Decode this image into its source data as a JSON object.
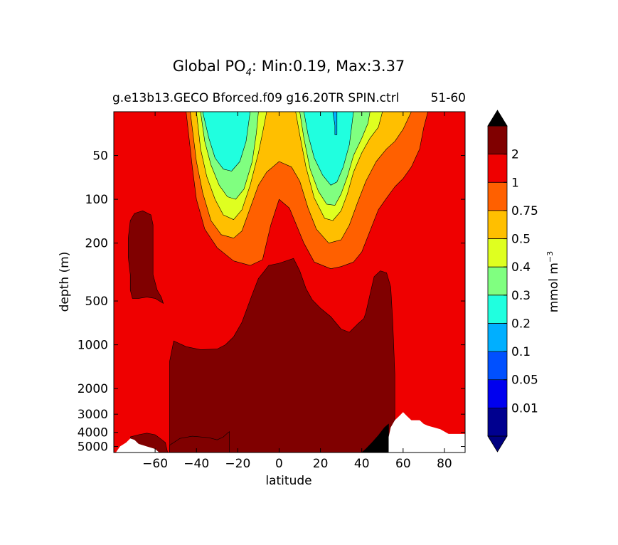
{
  "chart_data": {
    "type": "contourf",
    "title_main": "Global PO",
    "title_sub_index": "4",
    "title_rest": ": Min:0.19, Max:3.37",
    "title_min": 0.19,
    "title_max": 3.37,
    "subtitle_left": "g.e13b13.GECO Bforced.f09 g16.20TR SPIN.ctrl",
    "subtitle_right": "51-60",
    "xlabel": "latitude",
    "ylabel": "depth (m)",
    "xlim": [
      -80,
      90
    ],
    "ylim": [
      5500,
      25
    ],
    "y_scale": "log",
    "x_ticks": [
      -60,
      -40,
      -20,
      0,
      20,
      40,
      60,
      80
    ],
    "x_tick_labels": [
      "−60",
      "−40",
      "−20",
      "0",
      "20",
      "40",
      "60",
      "80"
    ],
    "y_ticks": [
      50,
      100,
      200,
      500,
      1000,
      2000,
      3000,
      4000,
      5000
    ],
    "y_tick_labels": [
      "50",
      "100",
      "200",
      "500",
      "1000",
      "2000",
      "3000",
      "4000",
      "5000"
    ],
    "colorbar": {
      "label": "mmol m",
      "label_exp": "−3",
      "extend": "both",
      "levels": [
        "0.01",
        "0.05",
        "0.1",
        "0.2",
        "0.3",
        "0.4",
        "0.5",
        "0.75",
        "1",
        "2"
      ],
      "colors": [
        "#00008f",
        "#0000ef",
        "#0050ff",
        "#00afff",
        "#20ffdf",
        "#80ff80",
        "#dfff20",
        "#ffbf00",
        "#ff6000",
        "#ef0000",
        "#800000"
      ],
      "under_color": "#000080",
      "over_color": "#000000"
    },
    "regions": [
      {
        "name": "0.75-1",
        "color": "#ff6000",
        "poly": [
          [
            -45,
            25
          ],
          [
            -42,
            60
          ],
          [
            -40,
            100
          ],
          [
            -36,
            160
          ],
          [
            -30,
            215
          ],
          [
            -22,
            265
          ],
          [
            -14,
            285
          ],
          [
            -8,
            260
          ],
          [
            -4,
            150
          ],
          [
            0,
            100
          ],
          [
            5,
            115
          ],
          [
            12,
            200
          ],
          [
            17,
            270
          ],
          [
            25,
            300
          ],
          [
            30,
            290
          ],
          [
            36,
            270
          ],
          [
            40,
            230
          ],
          [
            44,
            165
          ],
          [
            48,
            118
          ],
          [
            52,
            98
          ],
          [
            56,
            82
          ],
          [
            60,
            72
          ],
          [
            64,
            60
          ],
          [
            68,
            45
          ],
          [
            70,
            32
          ],
          [
            72,
            25
          ]
        ]
      },
      {
        "name": "0.5-0.75",
        "color": "#ffbf00",
        "poly": [
          [
            -43,
            25
          ],
          [
            -40,
            55
          ],
          [
            -37,
            90
          ],
          [
            -33,
            140
          ],
          [
            -28,
            175
          ],
          [
            -22,
            185
          ],
          [
            -18,
            165
          ],
          [
            -14,
            115
          ],
          [
            -10,
            80
          ],
          [
            -6,
            65
          ],
          [
            0,
            55
          ],
          [
            6,
            60
          ],
          [
            10,
            75
          ],
          [
            14,
            115
          ],
          [
            18,
            160
          ],
          [
            24,
            200
          ],
          [
            30,
            190
          ],
          [
            34,
            150
          ],
          [
            38,
            105
          ],
          [
            42,
            75
          ],
          [
            47,
            55
          ],
          [
            52,
            45
          ],
          [
            56,
            40
          ],
          [
            60,
            33
          ],
          [
            64,
            25
          ]
        ]
      },
      {
        "name": "0.4-0.5",
        "color": "#dfff20",
        "poly": [
          [
            -40,
            25
          ],
          [
            -38,
            45
          ],
          [
            -35,
            70
          ],
          [
            -31,
            100
          ],
          [
            -27,
            128
          ],
          [
            -22,
            138
          ],
          [
            -18,
            118
          ],
          [
            -14,
            80
          ],
          [
            -10,
            48
          ],
          [
            -8,
            35
          ],
          [
            -6,
            25
          ],
          [
            8,
            25
          ],
          [
            10,
            36
          ],
          [
            13,
            60
          ],
          [
            17,
            98
          ],
          [
            22,
            135
          ],
          [
            26,
            140
          ],
          [
            30,
            120
          ],
          [
            33,
            92
          ],
          [
            36,
            65
          ],
          [
            40,
            48
          ],
          [
            44,
            38
          ],
          [
            48,
            32
          ],
          [
            50,
            25
          ]
        ]
      },
      {
        "name": "0.3-0.4",
        "color": "#80ff80",
        "poly": [
          [
            -38,
            25
          ],
          [
            -36,
            40
          ],
          [
            -33,
            58
          ],
          [
            -29,
            80
          ],
          [
            -25,
            96
          ],
          [
            -21,
            100
          ],
          [
            -17,
            85
          ],
          [
            -13,
            55
          ],
          [
            -11,
            35
          ],
          [
            -10,
            25
          ],
          [
            10,
            25
          ],
          [
            12,
            38
          ],
          [
            15,
            62
          ],
          [
            19,
            88
          ],
          [
            23,
            108
          ],
          [
            27,
            110
          ],
          [
            30,
            92
          ],
          [
            33,
            70
          ],
          [
            36,
            50
          ],
          [
            40,
            38
          ],
          [
            43,
            30
          ],
          [
            44,
            25
          ]
        ]
      },
      {
        "name": "0.2-0.3",
        "color": "#20ffdf",
        "poly": [
          [
            -37,
            25
          ],
          [
            -34,
            38
          ],
          [
            -31,
            52
          ],
          [
            -27,
            62
          ],
          [
            -23,
            64
          ],
          [
            -19,
            55
          ],
          [
            -16,
            40
          ],
          [
            -14,
            25
          ],
          [
            12,
            25
          ],
          [
            14,
            36
          ],
          [
            17,
            52
          ],
          [
            21,
            68
          ],
          [
            25,
            80
          ],
          [
            28,
            76
          ],
          [
            31,
            60
          ],
          [
            34,
            42
          ],
          [
            36,
            25
          ]
        ]
      },
      {
        "name": "0.1-0.2",
        "color": "#00afff",
        "poly": [
          [
            26,
            25
          ],
          [
            27,
            31
          ],
          [
            27,
            36
          ],
          [
            28,
            36
          ],
          [
            28,
            30
          ],
          [
            28,
            25
          ]
        ]
      },
      {
        "name": "2+ upper left",
        "color": "#800000",
        "poly": [
          [
            -73,
            185
          ],
          [
            -72,
            140
          ],
          [
            -70,
            125
          ],
          [
            -66,
            120
          ],
          [
            -62,
            128
          ],
          [
            -61,
            150
          ],
          [
            -61,
            230
          ],
          [
            -61,
            330
          ],
          [
            -59,
            420
          ],
          [
            -57,
            470
          ],
          [
            -56,
            520
          ],
          [
            -60,
            480
          ],
          [
            -64,
            470
          ],
          [
            -68,
            480
          ],
          [
            -71,
            480
          ],
          [
            -72,
            420
          ],
          [
            -72,
            330
          ],
          [
            -73,
            250
          ]
        ]
      },
      {
        "name": "2+ main",
        "color": "#800000",
        "poly": [
          [
            -53,
            5500
          ],
          [
            -53,
            1300
          ],
          [
            -51,
            940
          ],
          [
            -45,
            1030
          ],
          [
            -38,
            1080
          ],
          [
            -30,
            1070
          ],
          [
            -26,
            1000
          ],
          [
            -22,
            880
          ],
          [
            -18,
            700
          ],
          [
            -13,
            450
          ],
          [
            -10,
            350
          ],
          [
            -5,
            285
          ],
          [
            0,
            275
          ],
          [
            7,
            255
          ],
          [
            10,
            310
          ],
          [
            13,
            410
          ],
          [
            16,
            490
          ],
          [
            20,
            560
          ],
          [
            25,
            640
          ],
          [
            30,
            780
          ],
          [
            34,
            820
          ],
          [
            38,
            720
          ],
          [
            41,
            660
          ],
          [
            42,
            600
          ],
          [
            44,
            450
          ],
          [
            46,
            340
          ],
          [
            49,
            310
          ],
          [
            52,
            320
          ],
          [
            54,
            400
          ],
          [
            55,
            700
          ],
          [
            56,
            1600
          ],
          [
            56,
            3000
          ],
          [
            55.5,
            5500
          ]
        ]
      },
      {
        "name": "2+ lower left",
        "color": "#800000",
        "poly": [
          [
            -72,
            4300
          ],
          [
            -68,
            4150
          ],
          [
            -64,
            4050
          ],
          [
            -60,
            4150
          ],
          [
            -58,
            4350
          ],
          [
            -55,
            4700
          ],
          [
            -54,
            5500
          ],
          [
            -68,
            5500
          ],
          [
            -70,
            5200
          ],
          [
            -71,
            4700
          ]
        ]
      },
      {
        "name": "2+ lower band",
        "color": "#800000",
        "poly": [
          [
            -53,
            4900
          ],
          [
            -48,
            4400
          ],
          [
            -42,
            4250
          ],
          [
            -34,
            4350
          ],
          [
            -30,
            4500
          ],
          [
            -27,
            4300
          ],
          [
            -25,
            4050
          ],
          [
            -24,
            3950
          ],
          [
            -24,
            4700
          ],
          [
            -24,
            5500
          ],
          [
            -53,
            5500
          ]
        ]
      },
      {
        "name": "over max",
        "color": "#000000",
        "poly": [
          [
            40,
            5500
          ],
          [
            42,
            5200
          ],
          [
            45,
            4700
          ],
          [
            48,
            4200
          ],
          [
            51,
            3700
          ],
          [
            53,
            3500
          ],
          [
            53,
            5500
          ]
        ]
      }
    ],
    "missing_region": {
      "name": "seafloor",
      "color": "#ffffff",
      "poly": [
        [
          -79,
          5500
        ],
        [
          -77,
          5000
        ],
        [
          -74,
          4700
        ],
        [
          -72,
          4400
        ],
        [
          -70,
          4500
        ],
        [
          -68,
          4800
        ],
        [
          -64,
          5000
        ],
        [
          -60,
          5200
        ],
        [
          -58,
          5500
        ],
        [
          53,
          5500
        ],
        [
          53,
          4300
        ],
        [
          54,
          3700
        ],
        [
          56,
          3300
        ],
        [
          58,
          3100
        ],
        [
          60,
          2900
        ],
        [
          62,
          3100
        ],
        [
          64,
          3300
        ],
        [
          68,
          3300
        ],
        [
          70,
          3500
        ],
        [
          72,
          3600
        ],
        [
          78,
          3800
        ],
        [
          82,
          4100
        ],
        [
          90,
          4100
        ],
        [
          90,
          5500
        ]
      ]
    },
    "background_color": "#ef0000",
    "contour_line_color": "#000000",
    "grid": false,
    "legend": "colorbar-right"
  }
}
